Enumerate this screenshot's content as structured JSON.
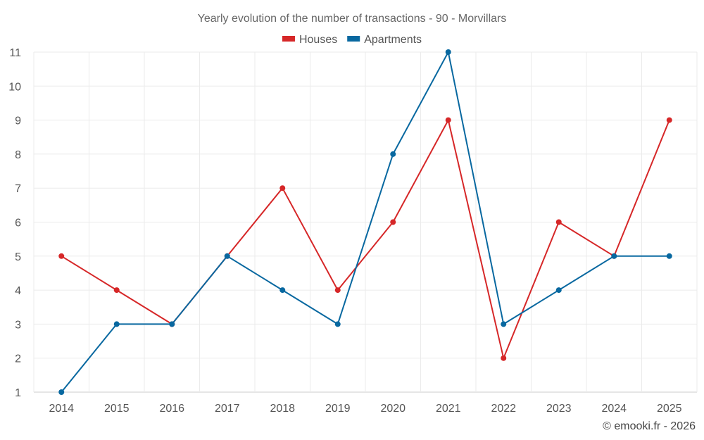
{
  "chart_data": {
    "type": "line",
    "title": "Yearly evolution of the number of transactions - 90 - Morvillars",
    "xlabel": "",
    "ylabel": "",
    "categories": [
      "2014",
      "2015",
      "2016",
      "2017",
      "2018",
      "2019",
      "2020",
      "2021",
      "2022",
      "2023",
      "2024",
      "2025"
    ],
    "ylim": [
      1,
      11
    ],
    "yticks": [
      1,
      2,
      3,
      4,
      5,
      6,
      7,
      8,
      9,
      10,
      11
    ],
    "legend_position": "top-center",
    "grid": true,
    "series": [
      {
        "name": "Houses",
        "color": "#d62728",
        "values": [
          5,
          4,
          3,
          5,
          7,
          4,
          6,
          9,
          2,
          6,
          5,
          9
        ]
      },
      {
        "name": "Apartments",
        "color": "#0868a0",
        "values": [
          1,
          3,
          3,
          5,
          4,
          3,
          8,
          11,
          3,
          4,
          5,
          5
        ]
      }
    ]
  },
  "credit": "© emooki.fr - 2026"
}
